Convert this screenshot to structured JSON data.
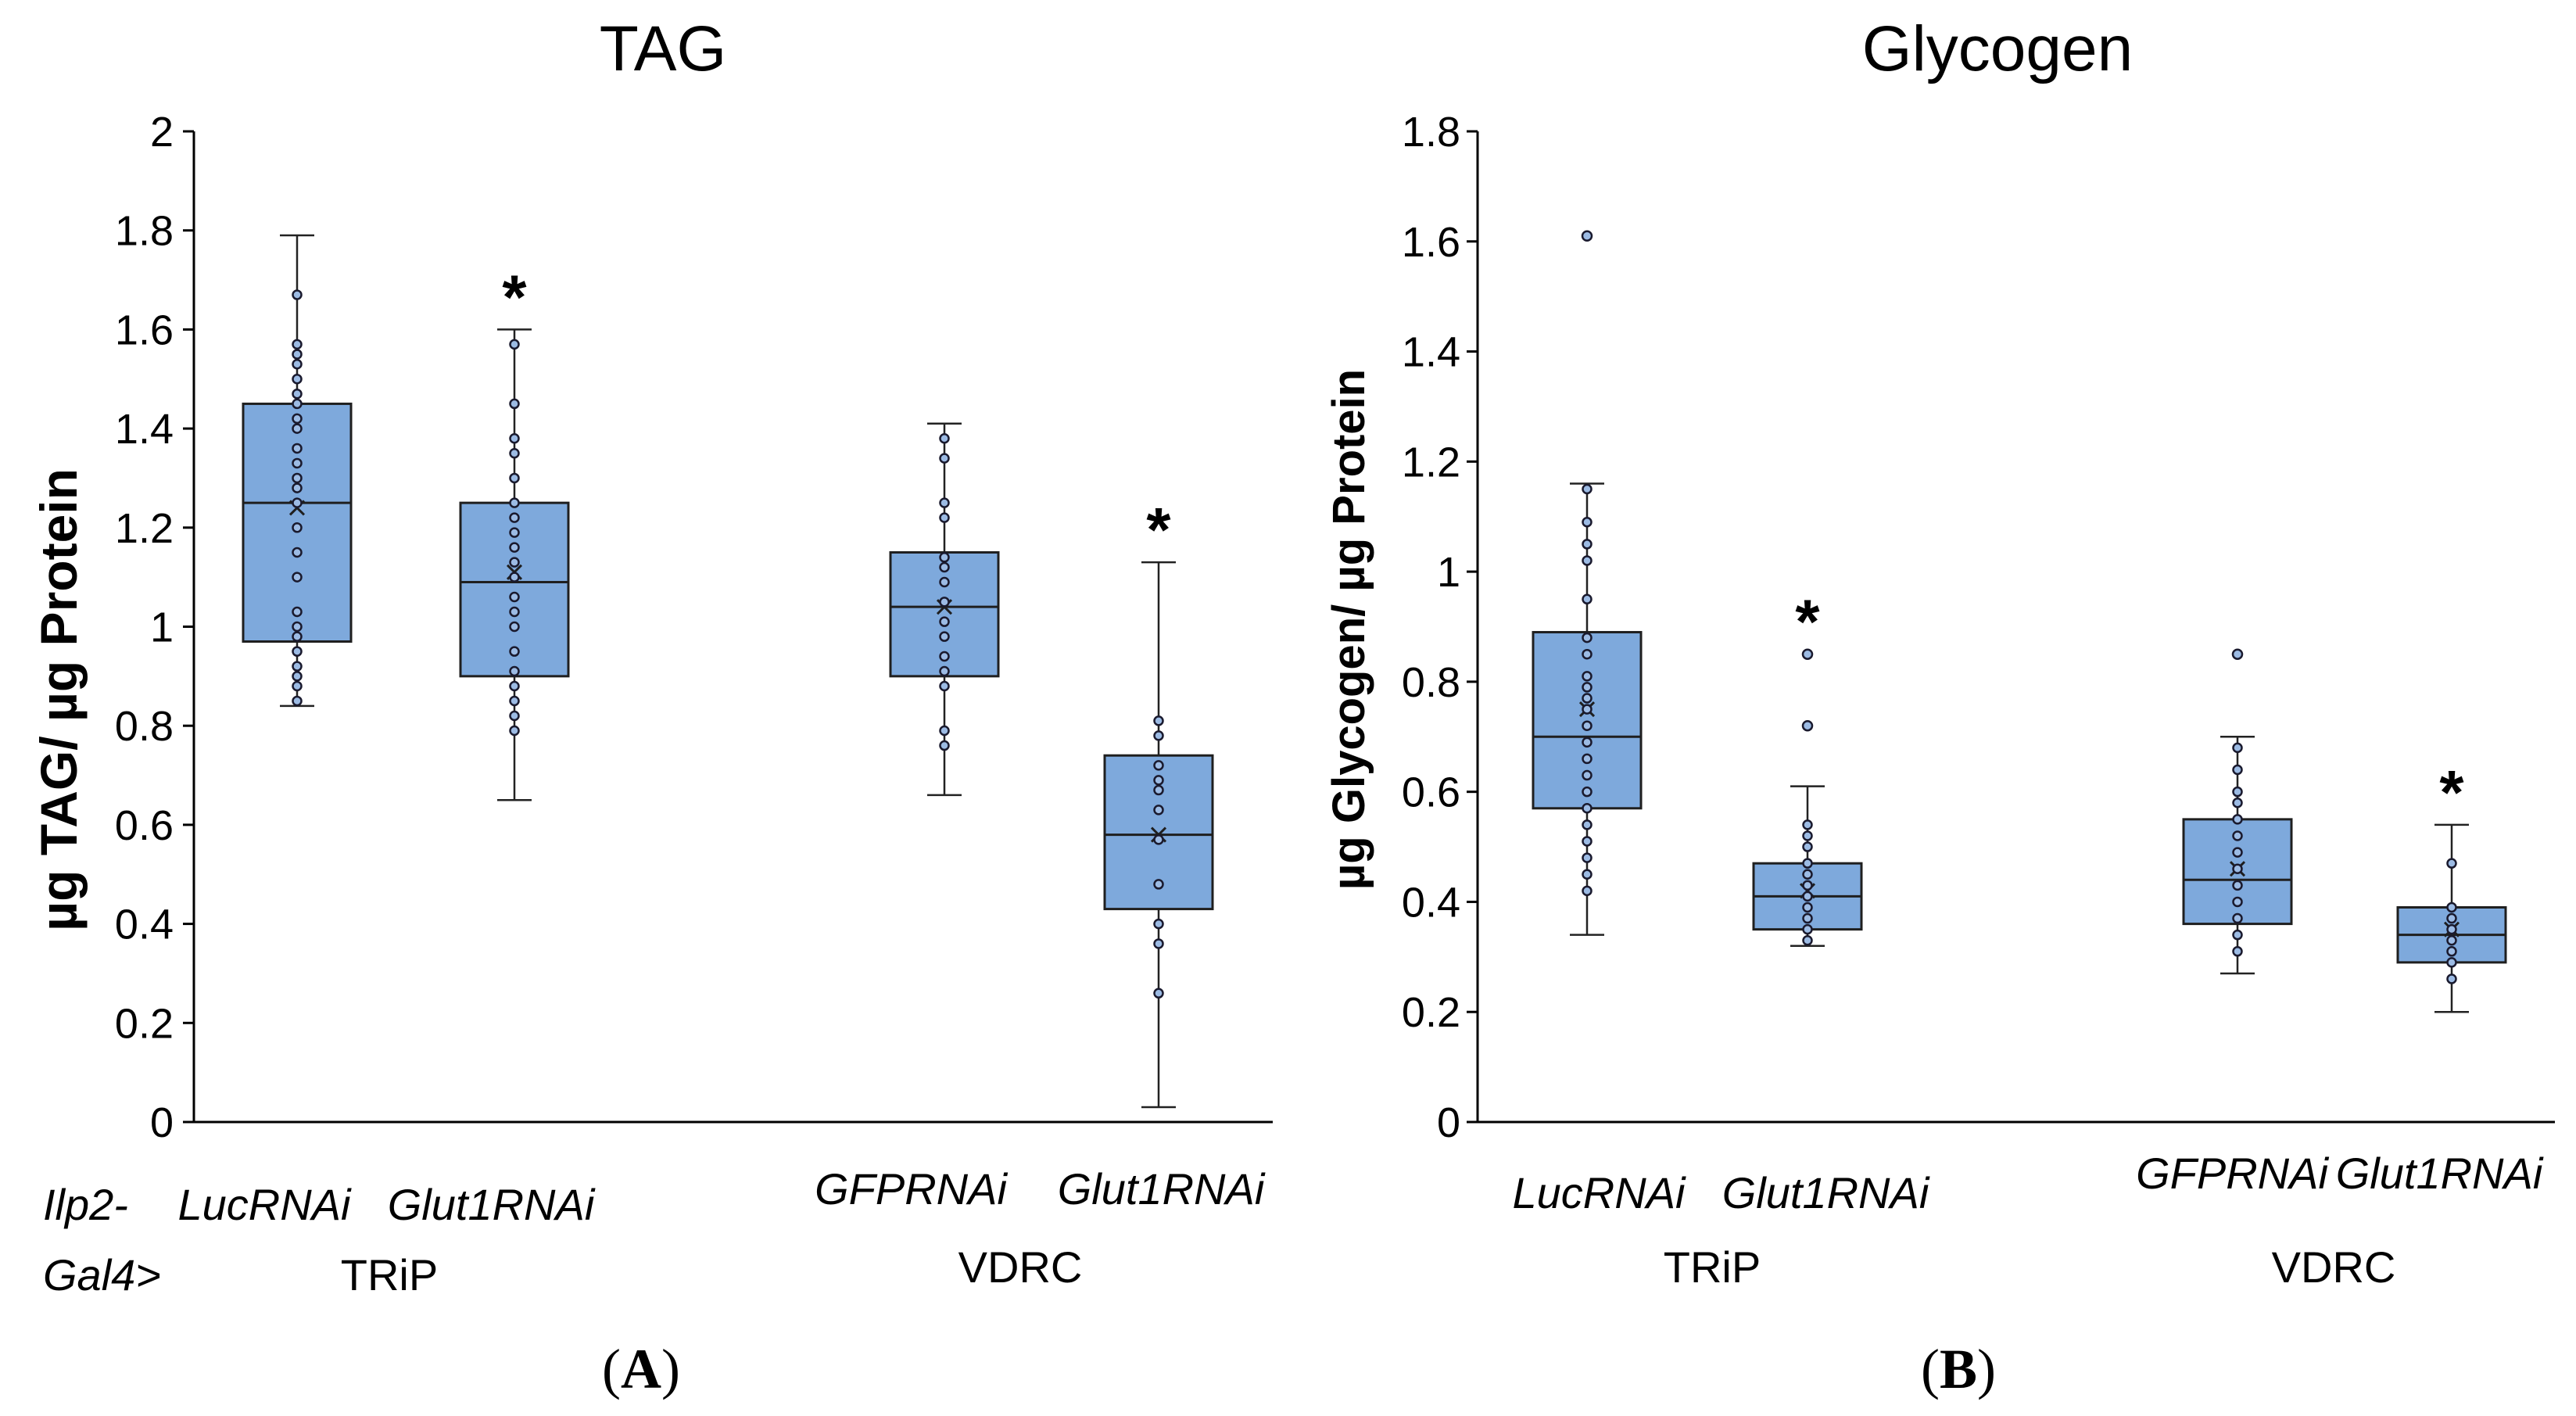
{
  "figure": {
    "panel_a_label": "A",
    "panel_b_label": "B"
  },
  "chart_data": [
    {
      "type": "box",
      "title": "TAG",
      "xlabel": "",
      "ylabel": "µg TAG/ µg Protein",
      "ylim": [
        0,
        2
      ],
      "yticks": [
        "0",
        "0.2",
        "0.4",
        "0.6",
        "0.8",
        "1",
        "1.2",
        "1.4",
        "1.6",
        "1.8",
        "2"
      ],
      "genotype_label_line1": "Ilp2-",
      "genotype_label_line2": "Gal4>",
      "groups": [
        {
          "name": "TRiP",
          "categories": [
            "LucRNAi",
            "Glut1RNAi"
          ]
        },
        {
          "name": "VDRC",
          "categories": [
            "GFPRNAi",
            "Glut1RNAi"
          ]
        }
      ],
      "series": [
        {
          "name": "LucRNAi",
          "group": "TRiP",
          "min": 0.84,
          "q1": 0.97,
          "median": 1.25,
          "q3": 1.45,
          "max": 1.79,
          "mean": 1.24,
          "significant": false,
          "points": [
            0.85,
            0.88,
            0.9,
            0.92,
            0.95,
            0.98,
            1.0,
            1.03,
            1.1,
            1.15,
            1.2,
            1.25,
            1.28,
            1.3,
            1.33,
            1.36,
            1.4,
            1.42,
            1.45,
            1.47,
            1.5,
            1.53,
            1.55,
            1.57,
            1.67
          ]
        },
        {
          "name": "Glut1RNAi",
          "group": "TRiP",
          "min": 0.65,
          "q1": 0.9,
          "median": 1.09,
          "q3": 1.25,
          "max": 1.6,
          "mean": 1.11,
          "significant": true,
          "significance_label": "*",
          "points": [
            0.79,
            0.82,
            0.85,
            0.88,
            0.91,
            0.95,
            1.0,
            1.03,
            1.06,
            1.1,
            1.13,
            1.16,
            1.19,
            1.22,
            1.25,
            1.3,
            1.35,
            1.38,
            1.45,
            1.57
          ]
        },
        {
          "name": "GFPRNAi",
          "group": "VDRC",
          "min": 0.66,
          "q1": 0.9,
          "median": 1.04,
          "q3": 1.15,
          "max": 1.41,
          "mean": 1.04,
          "significant": false,
          "points": [
            0.76,
            0.79,
            0.88,
            0.91,
            0.94,
            0.98,
            1.01,
            1.05,
            1.09,
            1.12,
            1.14,
            1.22,
            1.25,
            1.34,
            1.38
          ]
        },
        {
          "name": "Glut1RNAi",
          "group": "VDRC",
          "min": 0.03,
          "q1": 0.43,
          "median": 0.58,
          "q3": 0.74,
          "max": 1.13,
          "mean": 0.58,
          "significant": true,
          "significance_label": "*",
          "points": [
            0.26,
            0.36,
            0.4,
            0.48,
            0.57,
            0.63,
            0.67,
            0.69,
            0.72,
            0.78,
            0.81
          ]
        }
      ]
    },
    {
      "type": "box",
      "title": "Glycogen",
      "xlabel": "",
      "ylabel": "µg Glycogen/ µg Protein",
      "ylim": [
        0,
        1.8
      ],
      "yticks": [
        "0",
        "0.2",
        "0.4",
        "0.6",
        "0.8",
        "1",
        "1.2",
        "1.4",
        "1.6",
        "1.8"
      ],
      "groups": [
        {
          "name": "TRiP",
          "categories": [
            "LucRNAi",
            "Glut1RNAi"
          ]
        },
        {
          "name": "VDRC",
          "categories": [
            "GFPRNAi",
            "Glut1RNAi"
          ]
        }
      ],
      "series": [
        {
          "name": "LucRNAi",
          "group": "TRiP",
          "min": 0.34,
          "q1": 0.57,
          "median": 0.7,
          "q3": 0.89,
          "max": 1.16,
          "mean": 0.75,
          "significant": false,
          "outliers": [
            1.61
          ],
          "points": [
            0.42,
            0.45,
            0.48,
            0.51,
            0.54,
            0.57,
            0.6,
            0.63,
            0.66,
            0.69,
            0.72,
            0.75,
            0.77,
            0.79,
            0.81,
            0.85,
            0.88,
            0.95,
            1.02,
            1.05,
            1.09,
            1.15
          ]
        },
        {
          "name": "Glut1RNAi",
          "group": "TRiP",
          "min": 0.32,
          "q1": 0.35,
          "median": 0.41,
          "q3": 0.47,
          "max": 0.61,
          "mean": 0.42,
          "significant": true,
          "significance_label": "*",
          "outliers": [
            0.72,
            0.85
          ],
          "points": [
            0.33,
            0.35,
            0.37,
            0.39,
            0.41,
            0.43,
            0.45,
            0.47,
            0.5,
            0.52,
            0.54
          ]
        },
        {
          "name": "GFPRNAi",
          "group": "VDRC",
          "min": 0.27,
          "q1": 0.36,
          "median": 0.44,
          "q3": 0.55,
          "max": 0.7,
          "mean": 0.46,
          "significant": false,
          "outliers": [
            0.85
          ],
          "points": [
            0.31,
            0.34,
            0.37,
            0.4,
            0.43,
            0.46,
            0.49,
            0.52,
            0.55,
            0.58,
            0.6,
            0.64,
            0.68
          ]
        },
        {
          "name": "Glut1RNAi",
          "group": "VDRC",
          "min": 0.2,
          "q1": 0.29,
          "median": 0.34,
          "q3": 0.39,
          "max": 0.54,
          "mean": 0.35,
          "significant": true,
          "significance_label": "*",
          "points": [
            0.26,
            0.29,
            0.31,
            0.33,
            0.35,
            0.37,
            0.39,
            0.47
          ]
        }
      ]
    }
  ]
}
